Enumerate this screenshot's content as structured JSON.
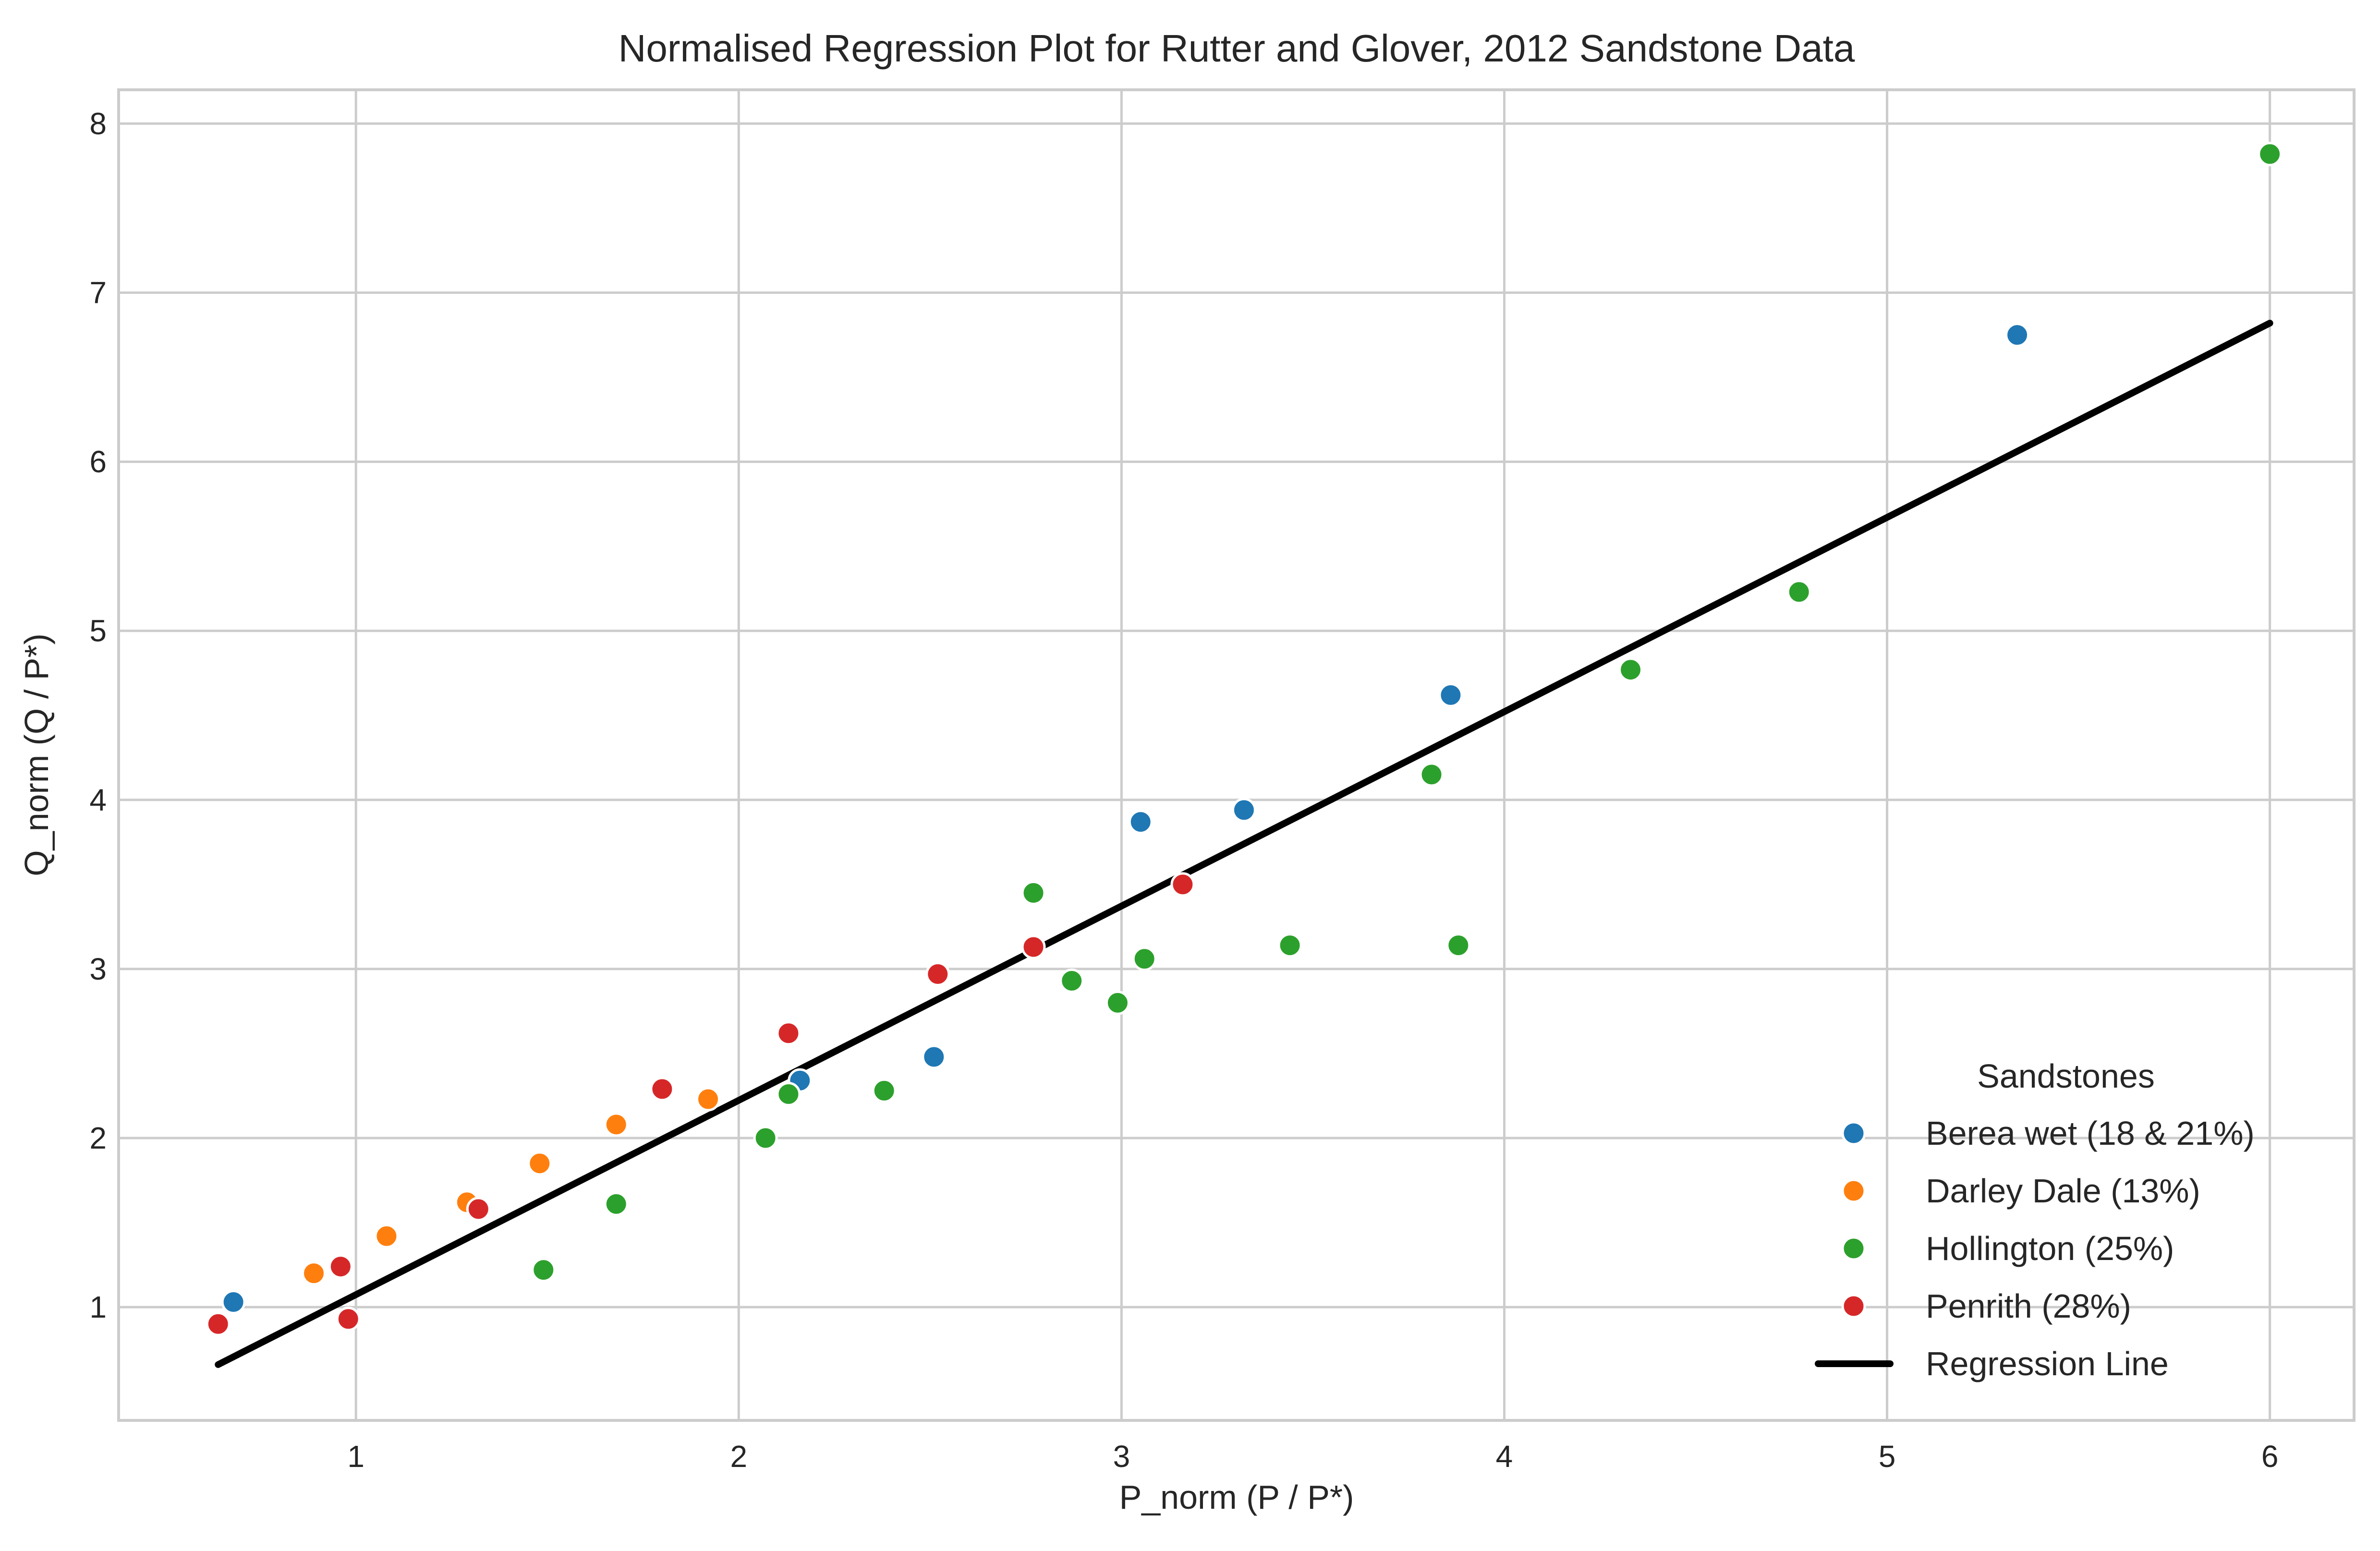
{
  "chart_data": {
    "type": "scatter",
    "title": "Normalised Regression Plot for Rutter and Glover, 2012 Sandstone Data",
    "xlabel": "P_norm (P / P*)",
    "ylabel": "Q_norm (Q / P*)",
    "xlim": [
      0.38,
      6.22
    ],
    "ylim": [
      0.33,
      8.2
    ],
    "xticks": [
      1,
      2,
      3,
      4,
      5,
      6
    ],
    "yticks": [
      1,
      2,
      3,
      4,
      5,
      6,
      7,
      8
    ],
    "xtick_labels": [
      "1",
      "2",
      "3",
      "4",
      "5",
      "6"
    ],
    "ytick_labels": [
      "1",
      "2",
      "3",
      "4",
      "5",
      "6",
      "7",
      "8"
    ],
    "grid": true,
    "legend": {
      "title": "Sandstones",
      "placement": "lower-right"
    },
    "series": [
      {
        "name": "Berea wet (18 & 21%)",
        "color": "#1f77b4",
        "x": [
          0.68,
          2.16,
          2.51,
          3.05,
          3.32,
          3.86,
          5.34
        ],
        "y": [
          1.03,
          2.34,
          2.48,
          3.87,
          3.94,
          4.62,
          6.75
        ]
      },
      {
        "name": "Darley Dale (13%)",
        "color": "#ff7f0e",
        "x": [
          0.89,
          1.08,
          1.29,
          1.48,
          1.68,
          1.92
        ],
        "y": [
          1.2,
          1.42,
          1.62,
          1.85,
          2.08,
          2.23
        ]
      },
      {
        "name": "Hollington (25%)",
        "color": "#2ca02c",
        "x": [
          1.49,
          1.68,
          2.07,
          2.13,
          2.38,
          2.77,
          2.87,
          2.99,
          3.06,
          3.44,
          3.81,
          3.88,
          4.33,
          4.77,
          6.0
        ],
        "y": [
          1.22,
          1.61,
          2.0,
          2.26,
          2.28,
          3.45,
          2.93,
          2.8,
          3.06,
          3.14,
          4.15,
          3.14,
          4.77,
          5.23,
          7.82
        ]
      },
      {
        "name": "Penrith (28%)",
        "color": "#d62728",
        "x": [
          0.64,
          0.96,
          0.98,
          1.32,
          1.8,
          2.13,
          2.52,
          2.77,
          3.16
        ],
        "y": [
          0.9,
          1.24,
          0.93,
          1.58,
          2.29,
          2.62,
          2.97,
          3.13,
          3.5
        ]
      }
    ],
    "regression_line": {
      "name": "Regression Line",
      "color": "#000000",
      "x": [
        0.64,
        6.0
      ],
      "y": [
        0.66,
        6.82
      ]
    }
  }
}
